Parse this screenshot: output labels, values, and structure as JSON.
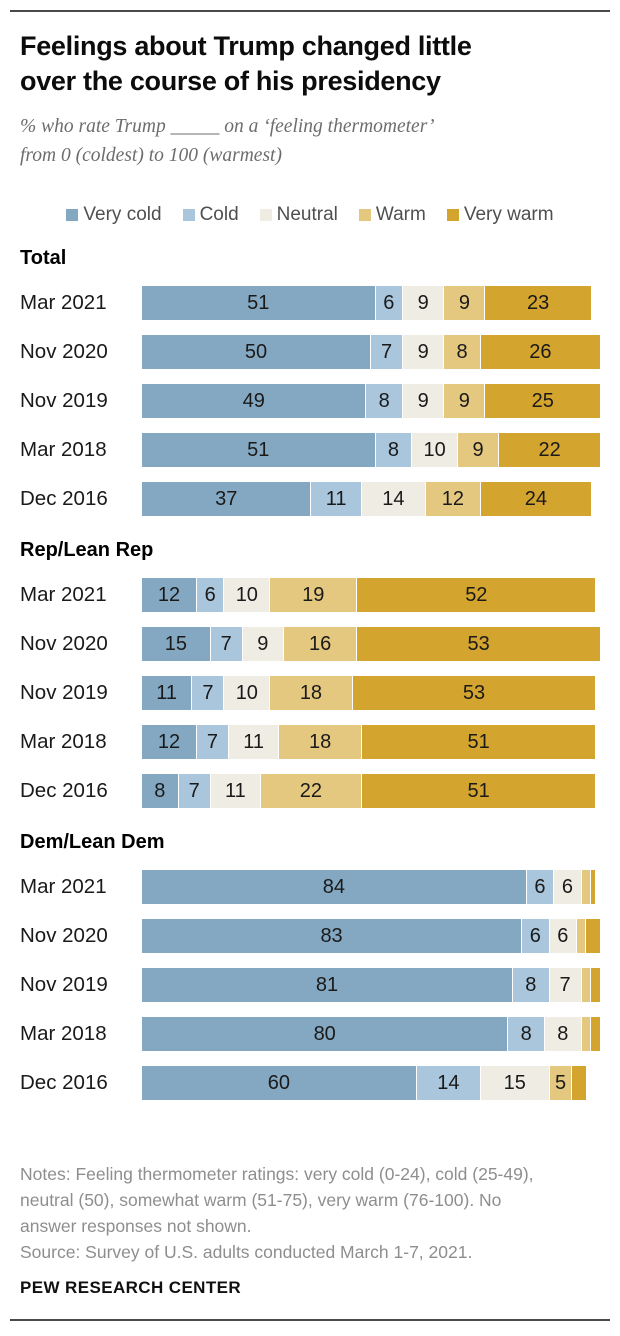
{
  "header": {
    "title_line1": "Feelings about Trump changed little",
    "title_line2": "over the course of his presidency",
    "subtitle_line1": "% who rate Trump _____ on a ‘feeling thermometer’",
    "subtitle_line2": "from 0 (coldest) to 100 (warmest)"
  },
  "legend": [
    {
      "label": "Very cold",
      "color": "#84a8c2"
    },
    {
      "label": "Cold",
      "color": "#a9c6dc"
    },
    {
      "label": "Neutral",
      "color": "#eeece3"
    },
    {
      "label": "Warm",
      "color": "#e4c87f"
    },
    {
      "label": "Very warm",
      "color": "#d3a42e"
    }
  ],
  "chart_data": {
    "type": "bar",
    "stacked": true,
    "orientation": "horizontal",
    "axis_max": 100,
    "grid": false,
    "legend_position": "top",
    "hide_value_labels_below": 5,
    "series_labels": [
      "Very cold",
      "Cold",
      "Neutral",
      "Warm",
      "Very warm"
    ],
    "series_colors": [
      "#84a8c2",
      "#a9c6dc",
      "#eeece3",
      "#e4c87f",
      "#d3a42e"
    ],
    "groups": [
      {
        "name": "Total",
        "rows": [
          {
            "label": "Mar 2021",
            "values": [
              51,
              6,
              9,
              9,
              23
            ]
          },
          {
            "label": "Nov 2020",
            "values": [
              50,
              7,
              9,
              8,
              26
            ]
          },
          {
            "label": "Nov 2019",
            "values": [
              49,
              8,
              9,
              9,
              25
            ]
          },
          {
            "label": "Mar 2018",
            "values": [
              51,
              8,
              10,
              9,
              22
            ]
          },
          {
            "label": "Dec 2016",
            "values": [
              37,
              11,
              14,
              12,
              24
            ]
          }
        ]
      },
      {
        "name": "Rep/Lean Rep",
        "rows": [
          {
            "label": "Mar 2021",
            "values": [
              12,
              6,
              10,
              19,
              52
            ]
          },
          {
            "label": "Nov 2020",
            "values": [
              15,
              7,
              9,
              16,
              53
            ]
          },
          {
            "label": "Nov 2019",
            "values": [
              11,
              7,
              10,
              18,
              53
            ]
          },
          {
            "label": "Mar 2018",
            "values": [
              12,
              7,
              11,
              18,
              51
            ]
          },
          {
            "label": "Dec 2016",
            "values": [
              8,
              7,
              11,
              22,
              51
            ]
          }
        ]
      },
      {
        "name": "Dem/Lean Dem",
        "rows": [
          {
            "label": "Mar 2021",
            "values": [
              84,
              6,
              6,
              2,
              1
            ]
          },
          {
            "label": "Nov 2020",
            "values": [
              83,
              6,
              6,
              2,
              3
            ]
          },
          {
            "label": "Nov 2019",
            "values": [
              81,
              8,
              7,
              2,
              2
            ]
          },
          {
            "label": "Mar 2018",
            "values": [
              80,
              8,
              8,
              2,
              2
            ]
          },
          {
            "label": "Dec 2016",
            "values": [
              60,
              14,
              15,
              5,
              3
            ]
          }
        ]
      }
    ]
  },
  "notes": {
    "lines": [
      "Notes: Feeling thermometer ratings: very cold (0-24), cold (25-49),",
      "neutral (50), somewhat warm (51-75), very warm (76-100). No",
      "answer responses not shown.",
      "Source: Survey of U.S. adults conducted March 1-7, 2021."
    ]
  },
  "footer": {
    "brand": "PEW RESEARCH CENTER"
  }
}
